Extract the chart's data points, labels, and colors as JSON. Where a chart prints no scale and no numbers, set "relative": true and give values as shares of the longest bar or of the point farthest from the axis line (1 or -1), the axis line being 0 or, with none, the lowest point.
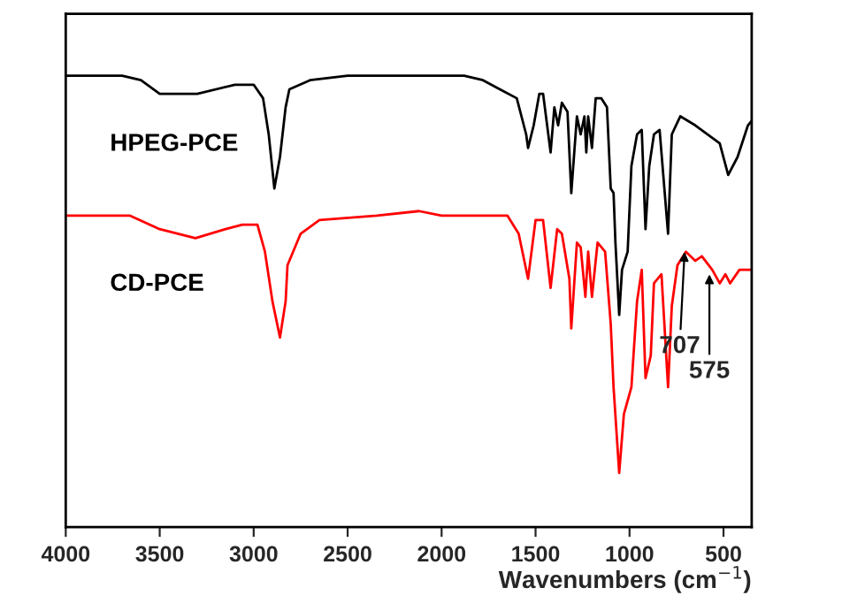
{
  "chart_data": {
    "type": "line",
    "xlabel": "Wavenumbers (cm$^{−1}$)",
    "relative": true,
    "tick_labels": "x",
    "grid": false,
    "legend": false,
    "marker": "none",
    "line_style": "solid",
    "xlim": [
      4000,
      350
    ],
    "xticks": [
      4000,
      3500,
      3000,
      2500,
      2000,
      1500,
      1000,
      500
    ],
    "series": [
      {
        "name": "HPEG-PCE",
        "color": "#000000",
        "x": [
          4000,
          3700,
          3600,
          3500,
          3400,
          3300,
          3100,
          3000,
          2950,
          2920,
          2890,
          2860,
          2830,
          2810,
          2700,
          2500,
          2000,
          1880,
          1780,
          1690,
          1600,
          1550,
          1540,
          1510,
          1480,
          1460,
          1420,
          1400,
          1380,
          1360,
          1330,
          1310,
          1280,
          1260,
          1240,
          1230,
          1220,
          1200,
          1180,
          1150,
          1120,
          1100,
          1085,
          1075,
          1055,
          1040,
          1010,
          990,
          960,
          935,
          915,
          895,
          870,
          840,
          795,
          775,
          730,
          650,
          520,
          475,
          425,
          370,
          350
        ],
        "values": [
          1.0,
          1.0,
          0.99,
          0.96,
          0.96,
          0.96,
          0.98,
          0.98,
          0.95,
          0.87,
          0.75,
          0.82,
          0.93,
          0.97,
          0.99,
          1.0,
          1.0,
          1.0,
          0.99,
          0.97,
          0.95,
          0.87,
          0.84,
          0.89,
          0.96,
          0.96,
          0.83,
          0.93,
          0.89,
          0.94,
          0.92,
          0.74,
          0.91,
          0.87,
          0.91,
          0.83,
          0.91,
          0.84,
          0.95,
          0.95,
          0.93,
          0.75,
          0.74,
          0.63,
          0.47,
          0.57,
          0.61,
          0.8,
          0.87,
          0.88,
          0.66,
          0.8,
          0.87,
          0.88,
          0.65,
          0.87,
          0.91,
          0.89,
          0.85,
          0.78,
          0.82,
          0.89,
          0.9
        ]
      },
      {
        "name": "CD-PCE",
        "color": "#ff0000",
        "x": [
          4000,
          3660,
          3500,
          3310,
          3150,
          3060,
          2980,
          2940,
          2900,
          2860,
          2830,
          2820,
          2750,
          2650,
          2345,
          2120,
          2000,
          1900,
          1810,
          1650,
          1590,
          1540,
          1500,
          1460,
          1420,
          1385,
          1360,
          1320,
          1310,
          1280,
          1260,
          1235,
          1220,
          1200,
          1170,
          1130,
          1100,
          1085,
          1055,
          1030,
          990,
          960,
          935,
          915,
          887,
          870,
          830,
          795,
          775,
          745,
          700,
          650,
          615,
          560,
          520,
          490,
          465,
          415,
          350
        ],
        "values": [
          0.69,
          0.69,
          0.66,
          0.64,
          0.66,
          0.67,
          0.67,
          0.61,
          0.5,
          0.42,
          0.5,
          0.58,
          0.65,
          0.68,
          0.69,
          0.7,
          0.69,
          0.69,
          0.69,
          0.69,
          0.65,
          0.55,
          0.68,
          0.68,
          0.53,
          0.66,
          0.65,
          0.55,
          0.44,
          0.63,
          0.62,
          0.51,
          0.61,
          0.51,
          0.63,
          0.61,
          0.45,
          0.31,
          0.12,
          0.25,
          0.31,
          0.5,
          0.57,
          0.33,
          0.38,
          0.54,
          0.56,
          0.31,
          0.49,
          0.58,
          0.61,
          0.59,
          0.6,
          0.57,
          0.54,
          0.56,
          0.54,
          0.57,
          0.57
        ]
      }
    ],
    "annotations": [
      {
        "text": "707",
        "x": 707,
        "y": 0.61
      },
      {
        "text": "575",
        "x": 575,
        "y": 0.56
      }
    ]
  }
}
